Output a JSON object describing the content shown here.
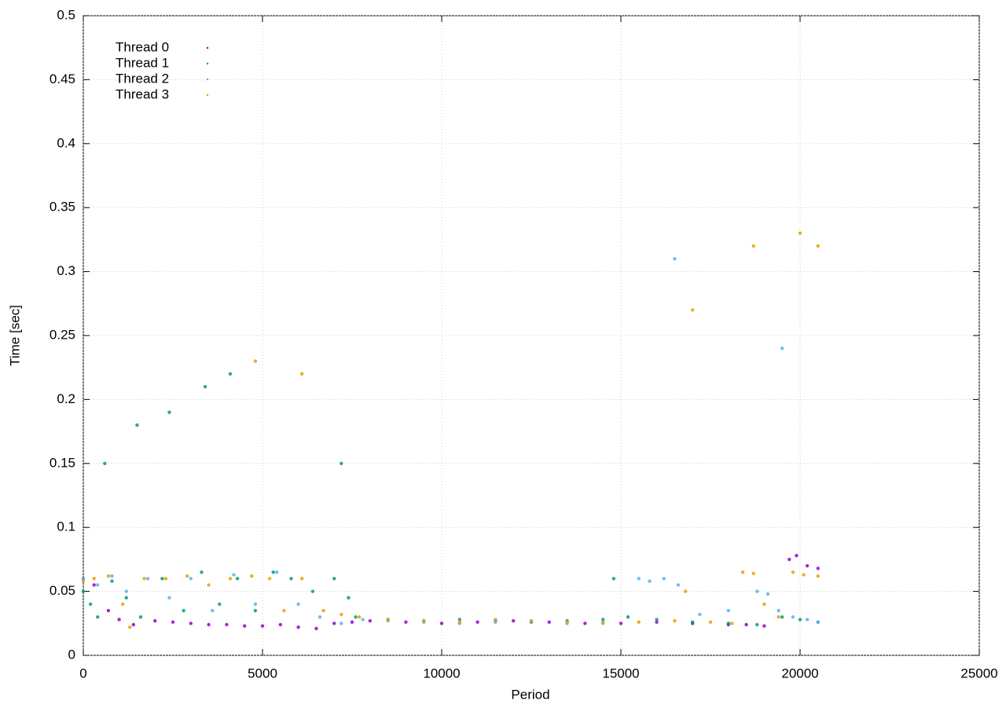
{
  "chart_data": {
    "type": "scatter",
    "xlabel": "Period",
    "ylabel": "Time [sec]",
    "xlim": [
      0,
      25000
    ],
    "ylim": [
      0,
      0.5
    ],
    "xticks": [
      0,
      5000,
      10000,
      15000,
      20000,
      25000
    ],
    "yticks": [
      0,
      0.05,
      0.1,
      0.15,
      0.2,
      0.25,
      0.3,
      0.35,
      0.4,
      0.45,
      0.5
    ],
    "grid": true,
    "legend": "top-left",
    "series": [
      {
        "name": "Thread 0",
        "color": "#9400d3",
        "x": [
          0,
          300,
          700,
          1000,
          1400,
          2000,
          2500,
          3000,
          3500,
          4000,
          4500,
          5000,
          5500,
          6000,
          6500,
          7000,
          7500,
          8000,
          9000,
          10000,
          11000,
          12000,
          13000,
          14000,
          15000,
          16000,
          17000,
          18000,
          18500,
          19000,
          19700,
          19900,
          20200,
          20500
        ],
        "y": [
          0.06,
          0.055,
          0.035,
          0.028,
          0.024,
          0.027,
          0.026,
          0.025,
          0.024,
          0.024,
          0.023,
          0.023,
          0.024,
          0.022,
          0.021,
          0.025,
          0.026,
          0.027,
          0.026,
          0.025,
          0.026,
          0.027,
          0.026,
          0.025,
          0.025,
          0.026,
          0.025,
          0.024,
          0.024,
          0.023,
          0.075,
          0.078,
          0.07,
          0.068
        ]
      },
      {
        "name": "Thread 1",
        "color": "#009e73",
        "x": [
          0,
          200,
          400,
          800,
          1200,
          1600,
          2200,
          2800,
          3300,
          3800,
          4300,
          4800,
          5300,
          5800,
          6400,
          7000,
          7400,
          7600,
          8500,
          9500,
          10500,
          11500,
          12500,
          13500,
          14500,
          14800,
          15200,
          16000,
          17000,
          18000,
          18800,
          19500,
          20000,
          20500,
          600,
          1500,
          2400,
          3400,
          4100,
          7200
        ],
        "y": [
          0.05,
          0.04,
          0.03,
          0.058,
          0.045,
          0.03,
          0.06,
          0.035,
          0.065,
          0.04,
          0.06,
          0.035,
          0.065,
          0.06,
          0.05,
          0.06,
          0.045,
          0.03,
          0.028,
          0.027,
          0.028,
          0.027,
          0.026,
          0.027,
          0.028,
          0.06,
          0.03,
          0.028,
          0.026,
          0.025,
          0.024,
          0.03,
          0.028,
          0.026,
          0.15,
          0.18,
          0.19,
          0.21,
          0.22,
          0.15
        ]
      },
      {
        "name": "Thread 2",
        "color": "#56b4e9",
        "x": [
          0,
          400,
          800,
          1200,
          1800,
          2400,
          3000,
          3600,
          4200,
          4800,
          5400,
          6000,
          6600,
          7200,
          7800,
          8500,
          9500,
          10500,
          11500,
          12500,
          13500,
          14500,
          15500,
          15800,
          16200,
          16600,
          17200,
          18000,
          18800,
          19100,
          19400,
          19800,
          20200,
          20500,
          16500,
          19500
        ],
        "y": [
          0.06,
          0.055,
          0.062,
          0.05,
          0.06,
          0.045,
          0.06,
          0.035,
          0.063,
          0.04,
          0.065,
          0.04,
          0.03,
          0.025,
          0.028,
          0.027,
          0.026,
          0.025,
          0.026,
          0.027,
          0.025,
          0.026,
          0.06,
          0.058,
          0.06,
          0.055,
          0.032,
          0.035,
          0.05,
          0.048,
          0.035,
          0.03,
          0.028,
          0.026,
          0.31,
          0.24
        ]
      },
      {
        "name": "Thread 3",
        "color": "#e69f00",
        "x": [
          0,
          300,
          700,
          1100,
          1300,
          1700,
          2300,
          2900,
          3500,
          4100,
          4700,
          5200,
          5600,
          6100,
          6700,
          7200,
          7700,
          8500,
          9500,
          10500,
          11500,
          12500,
          13500,
          14500,
          15500,
          16500,
          16800,
          17500,
          18100,
          18400,
          18700,
          19000,
          19400,
          19800,
          20100,
          20500,
          4800,
          6100,
          18700,
          20000,
          20500,
          17000
        ],
        "y": [
          0.058,
          0.06,
          0.062,
          0.04,
          0.022,
          0.06,
          0.06,
          0.062,
          0.055,
          0.06,
          0.062,
          0.06,
          0.035,
          0.06,
          0.035,
          0.032,
          0.03,
          0.028,
          0.027,
          0.026,
          0.028,
          0.027,
          0.026,
          0.025,
          0.026,
          0.027,
          0.05,
          0.026,
          0.025,
          0.065,
          0.064,
          0.04,
          0.03,
          0.065,
          0.063,
          0.062,
          0.23,
          0.22,
          0.32,
          0.33,
          0.32,
          0.27
        ]
      }
    ]
  }
}
